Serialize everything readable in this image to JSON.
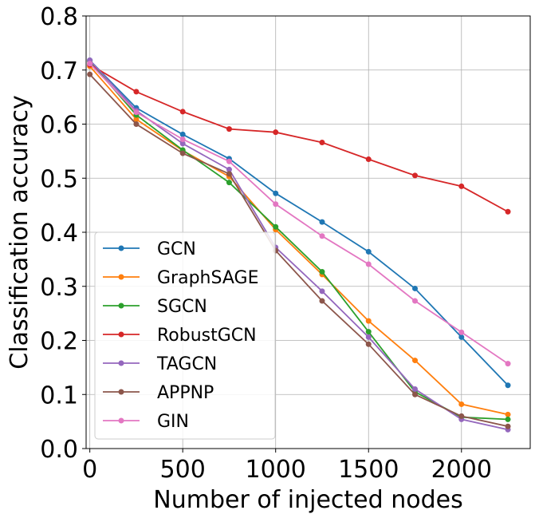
{
  "chart_data": {
    "type": "line",
    "xlabel": "Number of injected nodes",
    "ylabel": "Classification accuracy",
    "xlim": [
      -20,
      2370
    ],
    "ylim": [
      0.0,
      0.8
    ],
    "xticks": [
      0,
      500,
      1000,
      1500,
      2000
    ],
    "xtick_labels": [
      "0",
      "500",
      "1000",
      "1500",
      "2000"
    ],
    "yticks": [
      0.0,
      0.1,
      0.2,
      0.3,
      0.4,
      0.5,
      0.6,
      0.7,
      0.8
    ],
    "ytick_labels": [
      "0.0",
      "0.1",
      "0.2",
      "0.3",
      "0.4",
      "0.5",
      "0.6",
      "0.7",
      "0.8"
    ],
    "grid": true,
    "legend_position": "lower-left",
    "x": [
      0,
      250,
      500,
      750,
      1000,
      1250,
      1500,
      1750,
      2000,
      2250
    ],
    "series": [
      {
        "name": "GCN",
        "color": "#1f77b4",
        "values": [
          0.718,
          0.63,
          0.581,
          0.536,
          0.472,
          0.419,
          0.364,
          0.296,
          0.206,
          0.117
        ]
      },
      {
        "name": "GraphSAGE",
        "color": "#ff7f0e",
        "values": [
          0.707,
          0.609,
          0.551,
          0.503,
          0.405,
          0.322,
          0.236,
          0.163,
          0.082,
          0.063
        ]
      },
      {
        "name": "SGCN",
        "color": "#2ca02c",
        "values": [
          0.716,
          0.617,
          0.552,
          0.492,
          0.41,
          0.327,
          0.216,
          0.105,
          0.058,
          0.054
        ]
      },
      {
        "name": "RobustGCN",
        "color": "#d62728",
        "values": [
          0.71,
          0.66,
          0.623,
          0.591,
          0.585,
          0.566,
          0.535,
          0.505,
          0.485,
          0.438
        ]
      },
      {
        "name": "TAGCN",
        "color": "#9467bd",
        "values": [
          0.718,
          0.625,
          0.564,
          0.516,
          0.372,
          0.291,
          0.206,
          0.11,
          0.054,
          0.035
        ]
      },
      {
        "name": "APPNP",
        "color": "#8c564b",
        "values": [
          0.692,
          0.6,
          0.546,
          0.508,
          0.366,
          0.273,
          0.193,
          0.1,
          0.06,
          0.041
        ]
      },
      {
        "name": "GIN",
        "color": "#e377c2",
        "values": [
          0.712,
          0.622,
          0.572,
          0.531,
          0.452,
          0.393,
          0.341,
          0.273,
          0.215,
          0.157
        ]
      }
    ]
  }
}
